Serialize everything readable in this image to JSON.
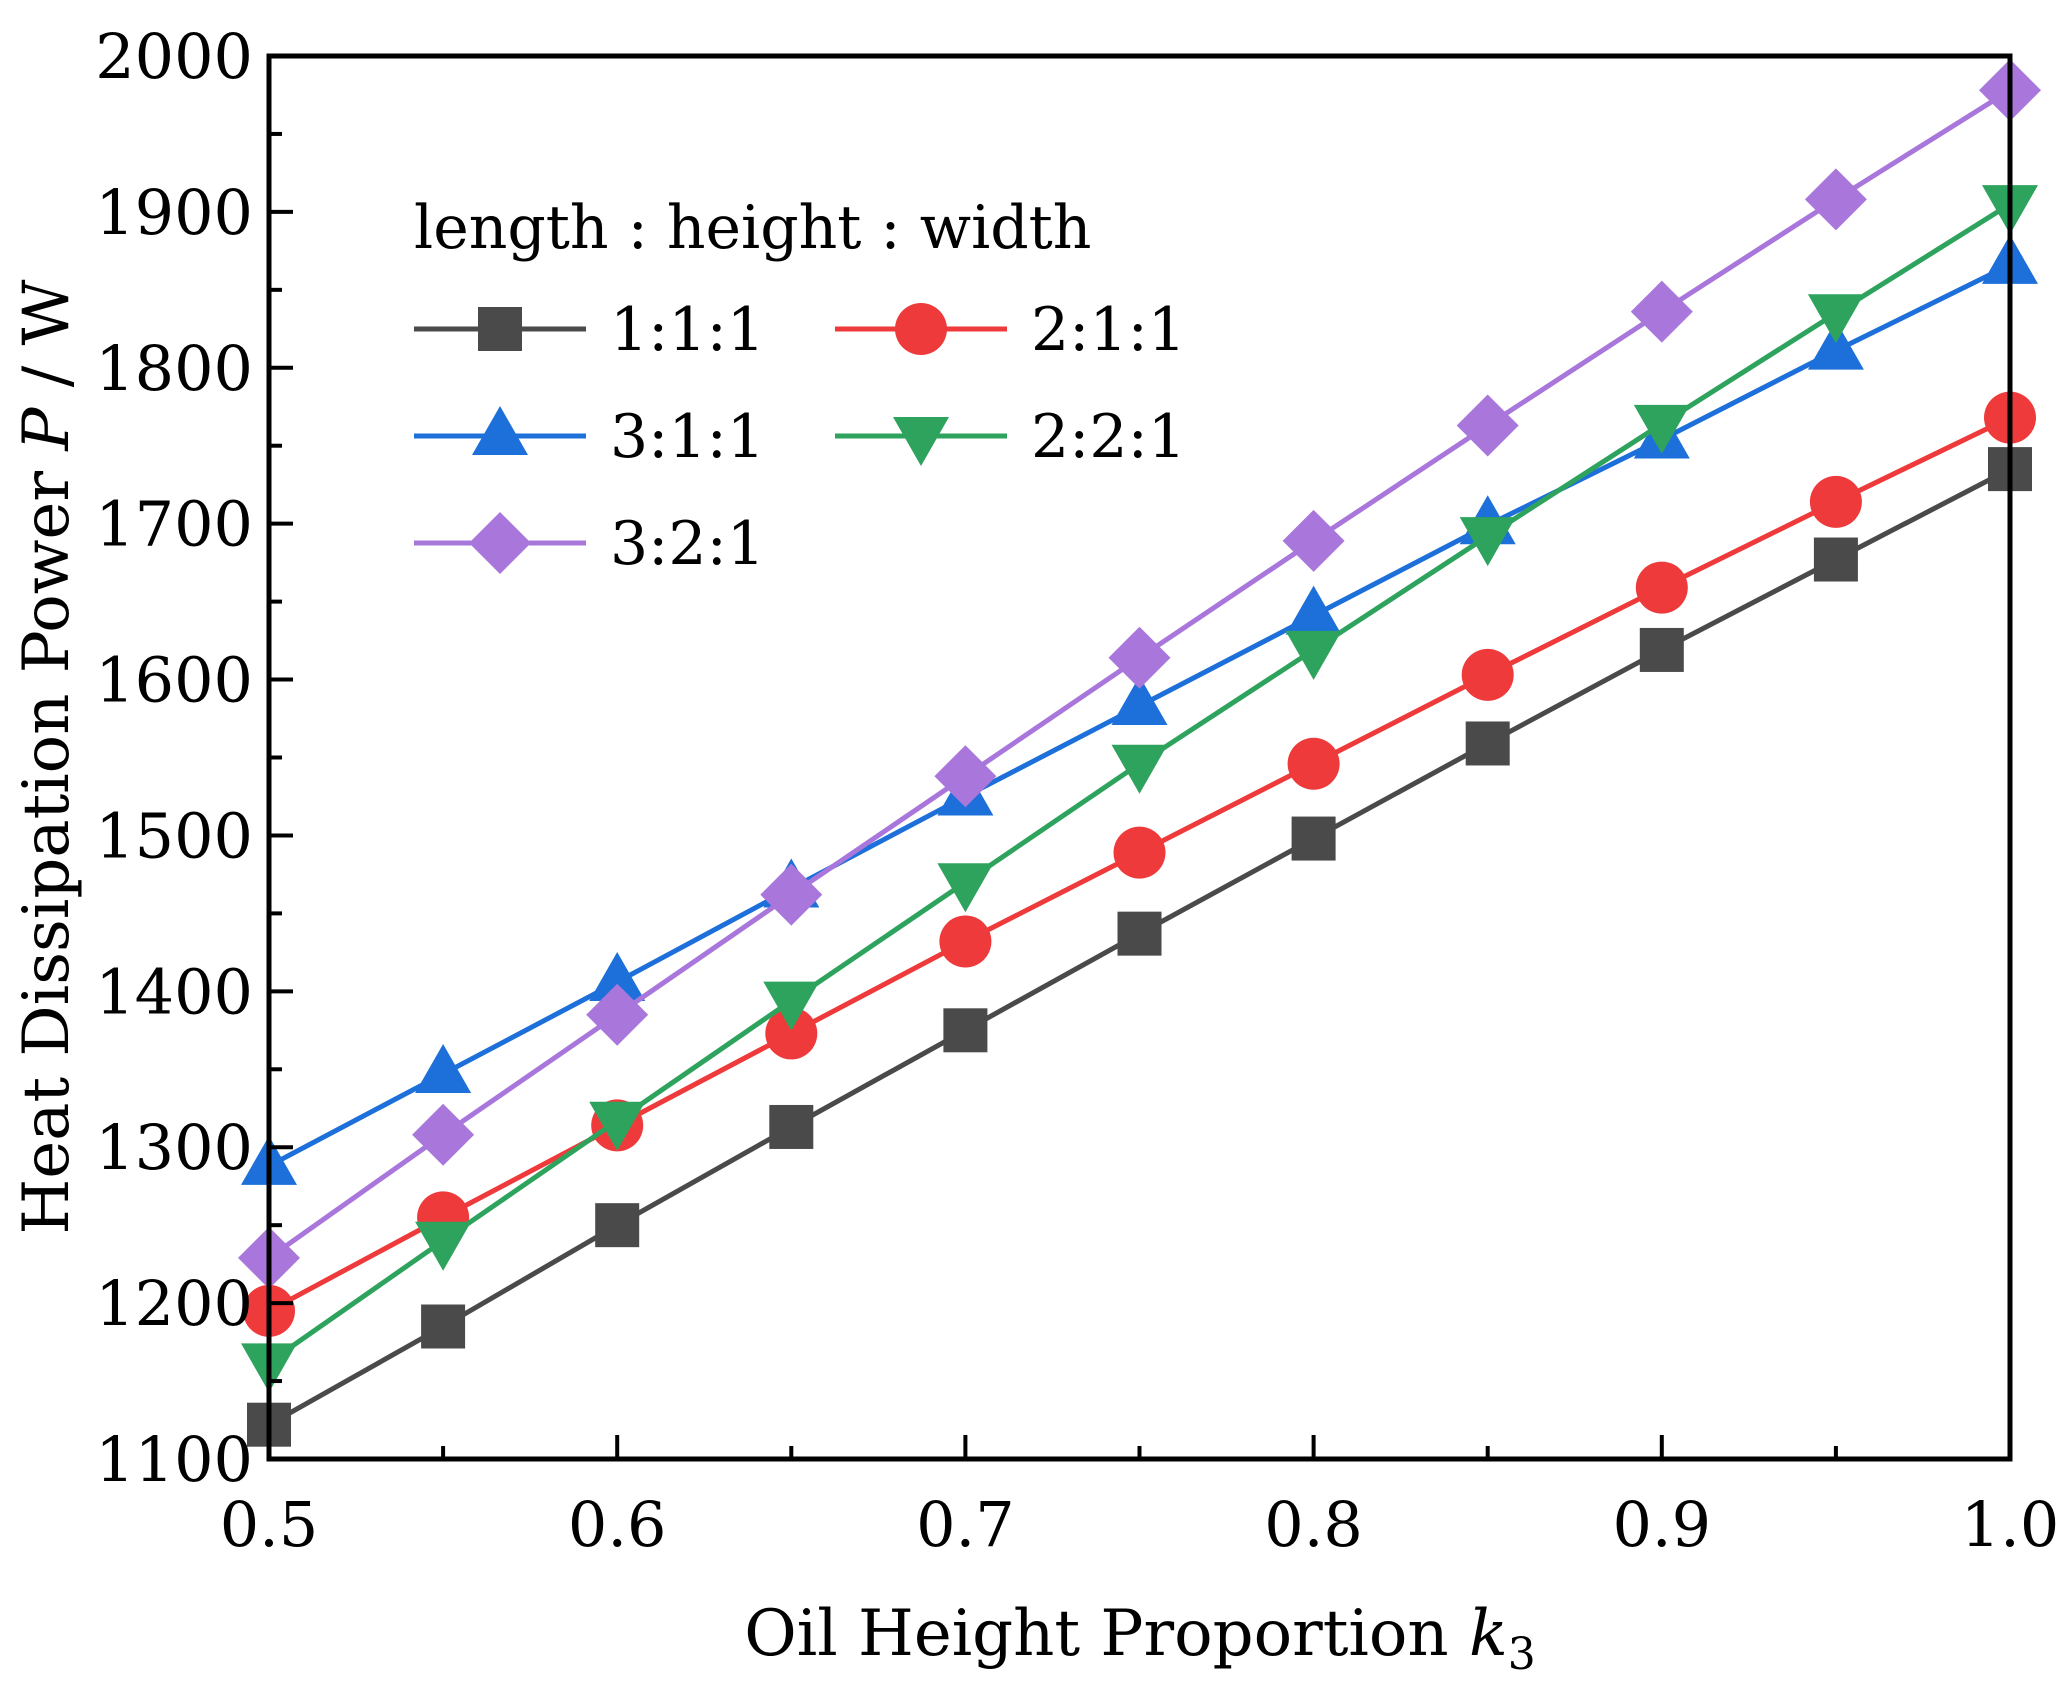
{
  "chart_data": {
    "type": "line",
    "title": "",
    "xlabel_main": "Oil Height Proportion ",
    "xlabel_var": "k",
    "xlabel_sub": "3",
    "ylabel_main": "Heat Dissipation Power ",
    "ylabel_var": "P",
    "ylabel_unit": " / W",
    "xlim": [
      0.5,
      1.0
    ],
    "ylim": [
      1100,
      2000
    ],
    "xticks": [
      "0.5",
      "0.6",
      "0.7",
      "0.8",
      "0.9",
      "1.0"
    ],
    "yticks": [
      "1100",
      "1200",
      "1300",
      "1400",
      "1500",
      "1600",
      "1700",
      "1800",
      "1900",
      "2000"
    ],
    "x": [
      0.5,
      0.55,
      0.6,
      0.65,
      0.7,
      0.75,
      0.8,
      0.85,
      0.9,
      0.95,
      1.0
    ],
    "legend_title": "length : height : width",
    "legend_position": "top-left",
    "grid": false,
    "series": [
      {
        "name": "1:1:1",
        "color": "#4a4a4a",
        "marker": "square",
        "values": [
          1122,
          1185,
          1250,
          1313,
          1375,
          1437,
          1498,
          1559,
          1619,
          1677,
          1735
        ]
      },
      {
        "name": "2:1:1",
        "color": "#ee3a3a",
        "marker": "circle",
        "values": [
          1195,
          1255,
          1314,
          1373,
          1432,
          1489,
          1546,
          1603,
          1659,
          1714,
          1768
        ]
      },
      {
        "name": "3:1:1",
        "color": "#1d6fd9",
        "marker": "triangle-up",
        "values": [
          1288,
          1347,
          1406,
          1466,
          1525,
          1583,
          1641,
          1699,
          1754,
          1811,
          1866
        ]
      },
      {
        "name": "2:2:1",
        "color": "#2ea35e",
        "marker": "triangle-down",
        "values": [
          1162,
          1240,
          1317,
          1394,
          1470,
          1546,
          1619,
          1692,
          1764,
          1835,
          1905
        ]
      },
      {
        "name": "3:2:1",
        "color": "#a977dc",
        "marker": "diamond",
        "values": [
          1229,
          1308,
          1385,
          1462,
          1538,
          1614,
          1689,
          1763,
          1836,
          1908,
          1978
        ]
      }
    ]
  }
}
